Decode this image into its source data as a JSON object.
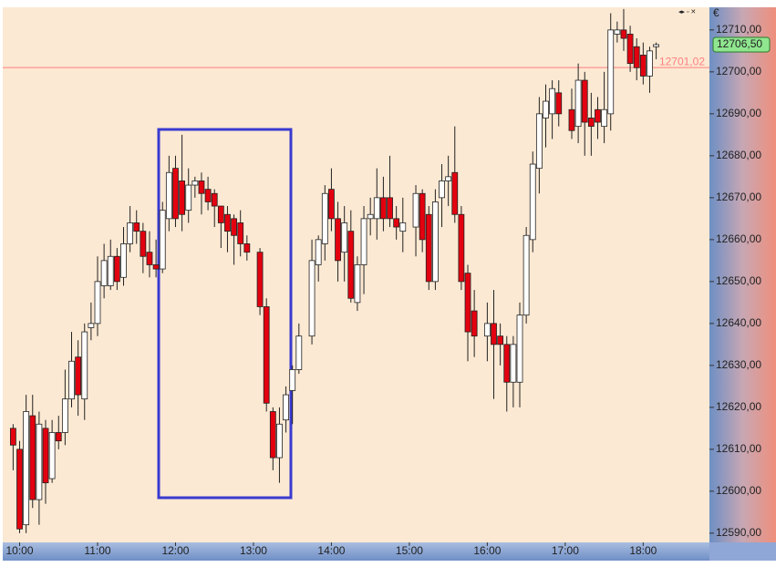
{
  "chart_data": {
    "type": "candlestick",
    "currency_symbol": "€",
    "x": [
      595,
      600,
      605,
      610,
      615,
      620,
      625,
      630,
      635,
      640,
      645,
      650,
      655,
      660,
      665,
      670,
      675,
      680,
      685,
      690,
      695,
      700,
      705,
      710,
      715,
      720,
      725,
      730,
      735,
      740,
      745,
      750,
      755,
      760,
      765,
      770,
      775,
      785,
      790,
      795,
      800,
      805,
      810,
      815,
      825,
      830,
      835,
      840,
      845,
      850,
      855,
      860,
      865,
      870,
      875,
      880,
      885,
      890,
      895,
      905,
      910,
      915,
      920,
      925,
      930,
      935,
      940,
      945,
      950,
      960,
      965,
      970,
      975,
      980,
      985,
      990,
      995,
      1000,
      1005,
      1010,
      1015,
      1025,
      1030,
      1035,
      1040,
      1045,
      1050,
      1055,
      1060,
      1065,
      1070,
      1075,
      1080,
      1085,
      1090
    ],
    "open": [
      12615,
      12610,
      12592,
      12618,
      12598,
      12615,
      12603,
      12614,
      12614,
      12622,
      12632,
      12622,
      12639,
      12640,
      12649,
      12649,
      12656,
      12651,
      12659,
      12664,
      12662,
      12657,
      12654,
      12653,
      12665,
      12677,
      12674,
      12667,
      12673,
      12674,
      12672,
      12671,
      12668,
      12666,
      12665,
      12664,
      12659,
      12657,
      12644,
      12619,
      12608,
      12617,
      12624,
      12629,
      12637,
      12654,
      12659,
      12672,
      12665,
      12657,
      12662,
      12645,
      12654,
      12665,
      12665,
      12670,
      12670,
      12665,
      12662,
      12663,
      12671,
      12666,
      12650,
      12670,
      12674,
      12676,
      12666,
      12652,
      12643,
      12637,
      12640,
      12637,
      12635,
      12626,
      12626,
      12642,
      12660,
      12677,
      12689,
      12690,
      12695,
      12691,
      12687,
      12698,
      12689,
      12691,
      12687,
      12690,
      12709,
      12710,
      12709,
      12706,
      12704,
      12699,
      12706
    ],
    "high": [
      12616,
      12612,
      12623,
      12623,
      12619,
      12617,
      12617,
      12618,
      12629,
      12638,
      12636,
      12640,
      12645,
      12656,
      12659,
      12660,
      12658,
      12663,
      12668,
      12667,
      12664,
      12662,
      12660,
      12669,
      12680,
      12680,
      12685,
      12677,
      12675,
      12676,
      12675,
      12672,
      12668,
      12668,
      12666,
      12667,
      12661,
      12658,
      12646,
      12620,
      12620,
      12625,
      12630,
      12640,
      12660,
      12661,
      12673,
      12677,
      12669,
      12668,
      12667,
      12656,
      12668,
      12670,
      12677,
      12675,
      12680,
      12668,
      12670,
      12673,
      12672,
      12668,
      12672,
      12678,
      12680,
      12687,
      12668,
      12654,
      12648,
      12645,
      12648,
      12640,
      12637,
      12637,
      12645,
      12663,
      12681,
      12694,
      12697,
      12698,
      12698,
      12696,
      12702,
      12700,
      12695,
      12694,
      12700,
      12714,
      12712,
      12715,
      12711,
      12708,
      12707,
      12706,
      12707
    ],
    "low": [
      12605,
      12590,
      12590,
      12596,
      12592,
      12597,
      12602,
      12610,
      12611,
      12620,
      12618,
      12617,
      12636,
      12637,
      12646,
      12648,
      12648,
      12649,
      12657,
      12659,
      12652,
      12651,
      12651,
      12652,
      12662,
      12663,
      12662,
      12664,
      12670,
      12666,
      12667,
      12663,
      12658,
      12657,
      12654,
      12656,
      12655,
      12642,
      12619,
      12605,
      12602,
      12614,
      12616,
      12628,
      12635,
      12650,
      12655,
      12662,
      12650,
      12650,
      12645,
      12643,
      12647,
      12661,
      12660,
      12662,
      12663,
      12660,
      12657,
      12656,
      12657,
      12648,
      12648,
      12663,
      12668,
      12664,
      12648,
      12631,
      12632,
      12631,
      12622,
      12630,
      12619,
      12620,
      12620,
      12640,
      12657,
      12671,
      12682,
      12684,
      12687,
      12684,
      12683,
      12680,
      12680,
      12684,
      12683,
      12686,
      12707,
      12705,
      12700,
      12698,
      12697,
      12695,
      12703
    ],
    "close": [
      12611,
      12591,
      12619,
      12598,
      12616,
      12602,
      12614,
      12612,
      12622,
      12631,
      12623,
      12638,
      12640,
      12650,
      12655,
      12656,
      12650,
      12659,
      12664,
      12662,
      12656,
      12654,
      12653,
      12667,
      12676,
      12665,
      12666,
      12673,
      12674,
      12671,
      12669,
      12668,
      12664,
      12662,
      12661,
      12659,
      12657,
      12644,
      12621,
      12608,
      12616,
      12623,
      12629,
      12637,
      12655,
      12660,
      12671,
      12665,
      12655,
      12664,
      12646,
      12654,
      12665,
      12666,
      12670,
      12665,
      12665,
      12663,
      12664,
      12671,
      12660,
      12650,
      12669,
      12674,
      12675,
      12666,
      12650,
      12638,
      12637,
      12640,
      12635,
      12635,
      12626,
      12635,
      12642,
      12661,
      12678,
      12690,
      12693,
      12696,
      12690,
      12686,
      12698,
      12688,
      12687,
      12688,
      12691,
      12710,
      12710,
      12708,
      12702,
      12701,
      12699,
      12705,
      12706.5
    ],
    "up_color": "#ffffff",
    "down_color": "#e3000f",
    "xlim": [
      587,
      1131
    ],
    "xticks": [
      {
        "value": 600,
        "label": "10:00"
      },
      {
        "value": 660,
        "label": "11:00"
      },
      {
        "value": 720,
        "label": "12:00"
      },
      {
        "value": 780,
        "label": "13:00"
      },
      {
        "value": 840,
        "label": "14:00"
      },
      {
        "value": 900,
        "label": "15:00"
      },
      {
        "value": 960,
        "label": "16:00"
      },
      {
        "value": 1020,
        "label": "17:00"
      },
      {
        "value": 1080,
        "label": "18:00"
      }
    ],
    "ylim": [
      12587.8,
      12715.4
    ],
    "yticks": [
      {
        "value": 12590,
        "label": "12590,00"
      },
      {
        "value": 12600,
        "label": "12600,00"
      },
      {
        "value": 12610,
        "label": "12610,00"
      },
      {
        "value": 12620,
        "label": "12620,00"
      },
      {
        "value": 12630,
        "label": "12630,00"
      },
      {
        "value": 12640,
        "label": "12640,00"
      },
      {
        "value": 12650,
        "label": "12650,00"
      },
      {
        "value": 12660,
        "label": "12660,00"
      },
      {
        "value": 12670,
        "label": "12670,00"
      },
      {
        "value": 12680,
        "label": "12680,00"
      },
      {
        "value": 12690,
        "label": "12690,00"
      },
      {
        "value": 12700,
        "label": "12700,00"
      },
      {
        "value": 12710,
        "label": "12710,00"
      }
    ],
    "reference_line": {
      "value": 12701.02,
      "label": "12701,02",
      "color": "#ff7f7f"
    },
    "last_price": {
      "value": 12706.5,
      "label": "12706,50",
      "color": "#8fe68f"
    }
  }
}
